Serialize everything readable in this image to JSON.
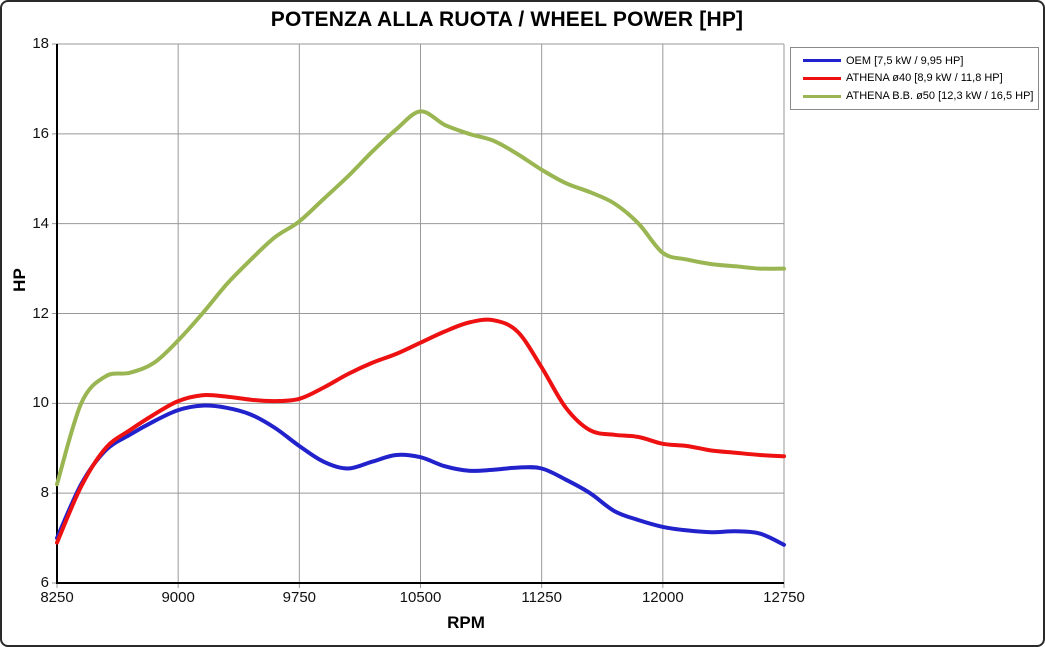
{
  "figure": {
    "title": "POTENZA ALLA RUOTA / WHEEL POWER [HP]"
  },
  "axes": {
    "x_label": "RPM",
    "y_label": "HP"
  },
  "legend": {
    "position": "top-right-outside"
  },
  "colors": {
    "background": "#ffffff",
    "grid": "#999999",
    "axis": "#000000",
    "legend_border": "#8a8a8a",
    "series_oem": "#2222cc",
    "series_athena40": "#ee1111",
    "series_athena_bb50": "#9ab652"
  },
  "chart_data": {
    "type": "line",
    "title": "POTENZA ALLA RUOTA / WHEEL POWER [HP]",
    "xlabel": "RPM",
    "ylabel": "HP",
    "xlim": [
      8250,
      12750
    ],
    "ylim": [
      6,
      18
    ],
    "x_ticks": [
      8250,
      9000,
      9750,
      10500,
      11250,
      12000,
      12750
    ],
    "y_ticks": [
      6,
      8,
      10,
      12,
      14,
      16,
      18
    ],
    "grid": true,
    "legend_position": "top-right",
    "series": [
      {
        "name": "OEM [7,5 kW / 9,95 HP]",
        "color": "#2222cc",
        "points": [
          [
            8250,
            7.0
          ],
          [
            8400,
            8.2
          ],
          [
            8550,
            8.95
          ],
          [
            8700,
            9.3
          ],
          [
            8850,
            9.6
          ],
          [
            9000,
            9.85
          ],
          [
            9150,
            9.95
          ],
          [
            9300,
            9.9
          ],
          [
            9450,
            9.75
          ],
          [
            9600,
            9.45
          ],
          [
            9750,
            9.05
          ],
          [
            9900,
            8.7
          ],
          [
            10050,
            8.55
          ],
          [
            10200,
            8.7
          ],
          [
            10350,
            8.85
          ],
          [
            10500,
            8.8
          ],
          [
            10650,
            8.6
          ],
          [
            10800,
            8.5
          ],
          [
            10950,
            8.52
          ],
          [
            11100,
            8.57
          ],
          [
            11250,
            8.55
          ],
          [
            11400,
            8.3
          ],
          [
            11550,
            8.0
          ],
          [
            11700,
            7.6
          ],
          [
            11850,
            7.4
          ],
          [
            12000,
            7.25
          ],
          [
            12150,
            7.17
          ],
          [
            12300,
            7.13
          ],
          [
            12450,
            7.15
          ],
          [
            12600,
            7.1
          ],
          [
            12750,
            6.85
          ]
        ]
      },
      {
        "name": "ATHENA ø40 [8,9 kW / 11,8 HP]",
        "color": "#ee1111",
        "points": [
          [
            8250,
            6.9
          ],
          [
            8400,
            8.15
          ],
          [
            8550,
            9.0
          ],
          [
            8700,
            9.4
          ],
          [
            8850,
            9.75
          ],
          [
            9000,
            10.05
          ],
          [
            9150,
            10.18
          ],
          [
            9300,
            10.15
          ],
          [
            9450,
            10.08
          ],
          [
            9600,
            10.05
          ],
          [
            9750,
            10.1
          ],
          [
            9900,
            10.35
          ],
          [
            10050,
            10.65
          ],
          [
            10200,
            10.9
          ],
          [
            10350,
            11.1
          ],
          [
            10500,
            11.35
          ],
          [
            10650,
            11.6
          ],
          [
            10800,
            11.8
          ],
          [
            10950,
            11.85
          ],
          [
            11100,
            11.6
          ],
          [
            11250,
            10.8
          ],
          [
            11400,
            9.9
          ],
          [
            11550,
            9.4
          ],
          [
            11700,
            9.3
          ],
          [
            11850,
            9.25
          ],
          [
            12000,
            9.1
          ],
          [
            12150,
            9.05
          ],
          [
            12300,
            8.95
          ],
          [
            12450,
            8.9
          ],
          [
            12600,
            8.85
          ],
          [
            12750,
            8.82
          ]
        ]
      },
      {
        "name": "ATHENA B.B. ø50 [12,3 kW / 16,5 HP]",
        "color": "#9ab652",
        "points": [
          [
            8250,
            8.2
          ],
          [
            8400,
            10.0
          ],
          [
            8550,
            10.6
          ],
          [
            8700,
            10.68
          ],
          [
            8850,
            10.9
          ],
          [
            9000,
            11.4
          ],
          [
            9150,
            12.0
          ],
          [
            9300,
            12.65
          ],
          [
            9450,
            13.2
          ],
          [
            9600,
            13.7
          ],
          [
            9750,
            14.05
          ],
          [
            9900,
            14.55
          ],
          [
            10050,
            15.05
          ],
          [
            10200,
            15.6
          ],
          [
            10350,
            16.1
          ],
          [
            10500,
            16.5
          ],
          [
            10650,
            16.2
          ],
          [
            10800,
            16.0
          ],
          [
            10950,
            15.85
          ],
          [
            11100,
            15.55
          ],
          [
            11250,
            15.2
          ],
          [
            11400,
            14.9
          ],
          [
            11550,
            14.7
          ],
          [
            11700,
            14.45
          ],
          [
            11850,
            14.0
          ],
          [
            12000,
            13.35
          ],
          [
            12150,
            13.2
          ],
          [
            12300,
            13.1
          ],
          [
            12450,
            13.05
          ],
          [
            12600,
            13.0
          ],
          [
            12750,
            13.0
          ]
        ]
      }
    ]
  }
}
